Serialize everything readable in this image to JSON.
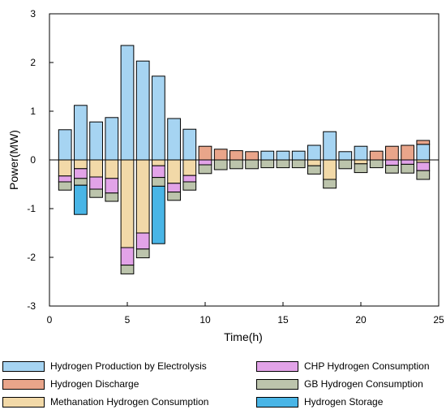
{
  "chart_data": {
    "type": "bar",
    "stacked": true,
    "xlabel": "Time(h)",
    "ylabel": "Power(MW)",
    "xlim": [
      0,
      25
    ],
    "ylim": [
      -3,
      3
    ],
    "xticks": [
      0,
      5,
      10,
      15,
      20,
      25
    ],
    "yticks": [
      3,
      2,
      1,
      0,
      -1,
      -2,
      -3
    ],
    "grid": false,
    "legend_position": "bottom",
    "x": [
      1,
      2,
      3,
      4,
      5,
      6,
      7,
      8,
      9,
      10,
      11,
      12,
      13,
      14,
      15,
      16,
      17,
      18,
      19,
      20,
      21,
      22,
      23,
      24
    ],
    "series": [
      {
        "name": "Hydrogen Production by Electrolysis",
        "color": "#a6d4f2",
        "values": [
          0.62,
          1.12,
          0.78,
          0.87,
          2.35,
          2.03,
          1.72,
          0.85,
          0.63,
          0,
          0,
          0,
          0,
          0.18,
          0.18,
          0.18,
          0.3,
          0.58,
          0.17,
          0.28,
          0,
          0,
          0,
          0.32
        ]
      },
      {
        "name": "Hydrogen Discharge",
        "color": "#e9a58a",
        "values": [
          0,
          0,
          0,
          0,
          0,
          0,
          0,
          0,
          0,
          0.28,
          0.22,
          0.19,
          0.17,
          0,
          0,
          0,
          0,
          0,
          0,
          0,
          0.18,
          0.28,
          0.3,
          0.08
        ]
      },
      {
        "name": "Methanation Hydrogen Consumption",
        "color": "#f2d9a8",
        "values": [
          -0.33,
          -0.18,
          -0.35,
          -0.38,
          -1.8,
          -1.5,
          -0.12,
          -0.48,
          -0.32,
          0,
          0,
          0,
          0,
          0,
          0,
          0,
          -0.12,
          -0.4,
          0,
          -0.08,
          0,
          0,
          0,
          -0.05
        ]
      },
      {
        "name": "CHP Hydrogen Consumption",
        "color": "#e2a3e8",
        "values": [
          -0.12,
          -0.2,
          -0.25,
          -0.3,
          -0.36,
          -0.33,
          -0.24,
          -0.18,
          -0.13,
          -0.1,
          0,
          0,
          0,
          0,
          0,
          0,
          0,
          0,
          0,
          0,
          0,
          -0.11,
          -0.09,
          -0.17
        ]
      },
      {
        "name": "GB Hydrogen Consumption",
        "color": "#bcc4ac",
        "values": [
          -0.17,
          -0.14,
          -0.17,
          -0.17,
          -0.18,
          -0.18,
          -0.18,
          -0.17,
          -0.17,
          -0.18,
          -0.2,
          -0.18,
          -0.18,
          -0.16,
          -0.16,
          -0.16,
          -0.17,
          -0.18,
          -0.18,
          -0.18,
          -0.16,
          -0.16,
          -0.18,
          -0.18
        ]
      },
      {
        "name": "Hydrogen Storage",
        "color": "#49b5e6",
        "values": [
          0,
          -0.6,
          0,
          0,
          0,
          0,
          -1.18,
          0,
          0,
          0,
          0,
          0,
          0,
          0,
          0,
          0,
          0,
          0,
          0,
          0,
          0,
          0,
          0,
          0
        ]
      }
    ]
  }
}
